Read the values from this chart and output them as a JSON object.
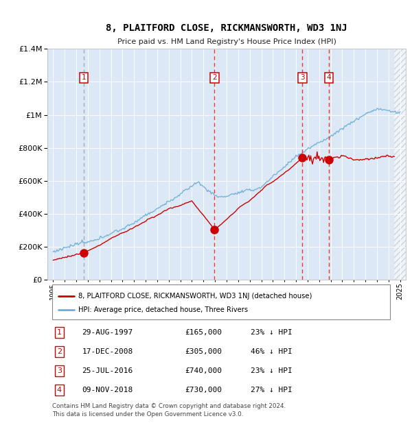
{
  "title": "8, PLAITFORD CLOSE, RICKMANSWORTH, WD3 1NJ",
  "subtitle": "Price paid vs. HM Land Registry's House Price Index (HPI)",
  "footer": "Contains HM Land Registry data © Crown copyright and database right 2024.\nThis data is licensed under the Open Government Licence v3.0.",
  "legend_line1": "8, PLAITFORD CLOSE, RICKMANSWORTH, WD3 1NJ (detached house)",
  "legend_line2": "HPI: Average price, detached house, Three Rivers",
  "sales": [
    {
      "num": 1,
      "date": "29-AUG-1997",
      "price": 165000,
      "pct": "23%",
      "x_year": 1997.66,
      "line_grey": true
    },
    {
      "num": 2,
      "date": "17-DEC-2008",
      "price": 305000,
      "pct": "46%",
      "x_year": 2008.96,
      "line_grey": false
    },
    {
      "num": 3,
      "date": "25-JUL-2016",
      "price": 740000,
      "pct": "23%",
      "x_year": 2016.56,
      "line_grey": false
    },
    {
      "num": 4,
      "date": "09-NOV-2018",
      "price": 730000,
      "pct": "27%",
      "x_year": 2018.86,
      "line_grey": false
    }
  ],
  "row_data": [
    [
      1,
      "29-AUG-1997",
      "£165,000",
      "23% ↓ HPI"
    ],
    [
      2,
      "17-DEC-2008",
      "£305,000",
      "46% ↓ HPI"
    ],
    [
      3,
      "25-JUL-2016",
      "£740,000",
      "23% ↓ HPI"
    ],
    [
      4,
      "09-NOV-2018",
      "£730,000",
      "27% ↓ HPI"
    ]
  ],
  "ylim": [
    0,
    1400000
  ],
  "xlim": [
    1994.5,
    2025.5
  ],
  "hpi_color": "#6aaed6",
  "price_color": "#cc0000",
  "dashed_color": "#ee3333",
  "grey_dash_color": "#aaaaaa",
  "bg_color": "#dce8f5",
  "grid_color": "#ffffff"
}
